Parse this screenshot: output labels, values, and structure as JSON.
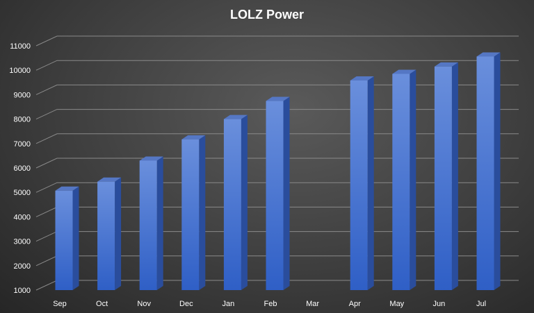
{
  "chart_data": {
    "type": "bar",
    "title": "LOLZ Power",
    "xlabel": "",
    "ylabel": "",
    "categories": [
      "Sep",
      "Oct",
      "Nov",
      "Dec",
      "Jan",
      "Feb",
      "Mar",
      "Apr",
      "May",
      "Jun",
      "Jul"
    ],
    "values": [
      5070,
      5440,
      6300,
      7170,
      8000,
      8740,
      null,
      9580,
      9850,
      10150,
      10560
    ],
    "ylim": [
      1000,
      11000
    ],
    "yticks": [
      "1000",
      "2000",
      "3000",
      "4000",
      "5000",
      "6000",
      "7000",
      "8000",
      "9000",
      "10000",
      "11000"
    ],
    "grid": true,
    "legend": "none",
    "colors": {
      "bar_front_top": "#6a8fdc",
      "bar_front_bottom": "#2f5fc6",
      "bar_side": "#2a4d9c",
      "bar_top": "#5577c4",
      "grid": "#8a8a8a"
    }
  }
}
